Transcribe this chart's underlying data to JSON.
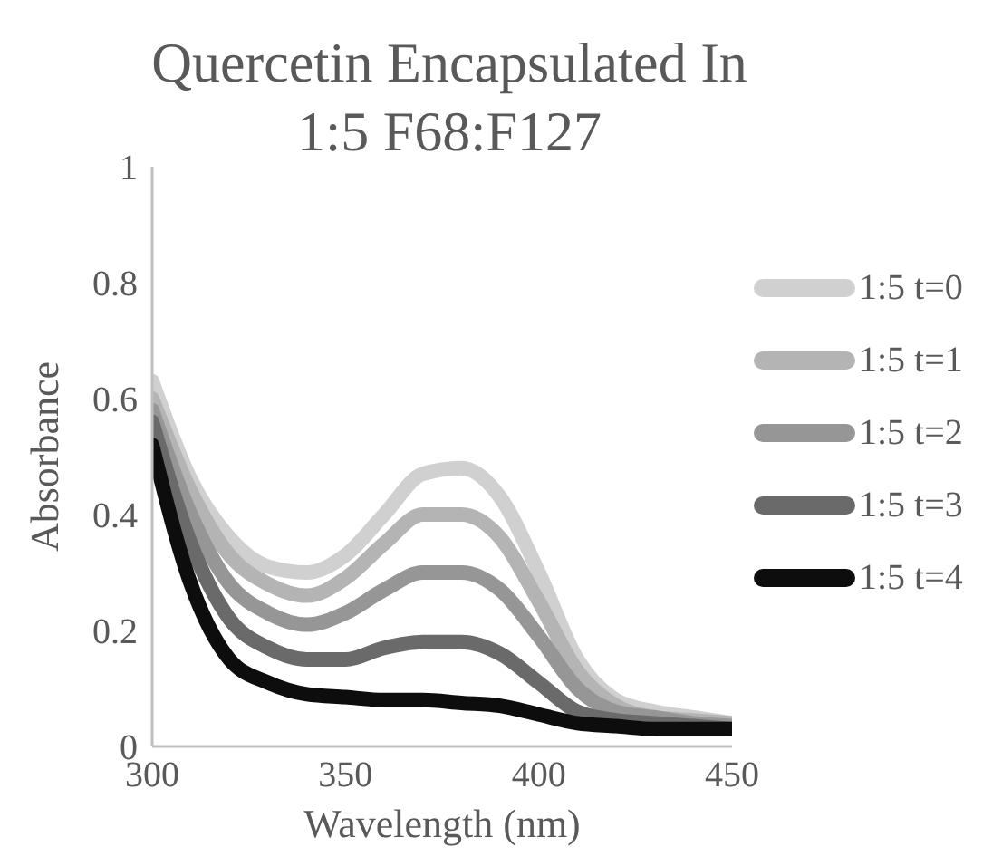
{
  "chart_data": {
    "type": "line",
    "title": "Quercetin Encapsulated In 1:5 F68:F127",
    "xlabel": "Wavelength (nm)",
    "ylabel": "Absorbance",
    "x": [
      300,
      310,
      320,
      330,
      340,
      350,
      360,
      370,
      380,
      390,
      400,
      410,
      420,
      430,
      440,
      450
    ],
    "series": [
      {
        "name": "1:5 t=0",
        "color": "#d0d0d0",
        "values": [
          0.63,
          0.46,
          0.36,
          0.31,
          0.3,
          0.33,
          0.4,
          0.47,
          0.48,
          0.43,
          0.3,
          0.15,
          0.08,
          0.06,
          0.05,
          0.04
        ]
      },
      {
        "name": "1:5 t=1",
        "color": "#b4b4b4",
        "values": [
          0.6,
          0.44,
          0.33,
          0.28,
          0.26,
          0.29,
          0.35,
          0.4,
          0.4,
          0.36,
          0.25,
          0.13,
          0.07,
          0.05,
          0.045,
          0.04
        ]
      },
      {
        "name": "1:5 t=2",
        "color": "#969696",
        "values": [
          0.58,
          0.4,
          0.28,
          0.23,
          0.21,
          0.23,
          0.27,
          0.3,
          0.3,
          0.27,
          0.19,
          0.1,
          0.06,
          0.05,
          0.04,
          0.035
        ]
      },
      {
        "name": "1:5 t=3",
        "color": "#6a6a6a",
        "values": [
          0.56,
          0.35,
          0.22,
          0.17,
          0.15,
          0.15,
          0.17,
          0.18,
          0.18,
          0.16,
          0.11,
          0.06,
          0.045,
          0.04,
          0.035,
          0.03
        ]
      },
      {
        "name": "1:5 t=4",
        "color": "#0d0d0d",
        "values": [
          0.52,
          0.28,
          0.15,
          0.11,
          0.09,
          0.085,
          0.08,
          0.08,
          0.075,
          0.07,
          0.055,
          0.04,
          0.035,
          0.03,
          0.03,
          0.03
        ]
      }
    ],
    "xlim": [
      300,
      450
    ],
    "xticks": [
      300,
      350,
      400,
      450
    ],
    "ylim": [
      0,
      1
    ],
    "yticks": [
      0,
      0.2,
      0.4,
      0.6,
      0.8,
      1
    ],
    "grid": false,
    "legend": "right",
    "marker": "none",
    "line_style": "solid"
  }
}
